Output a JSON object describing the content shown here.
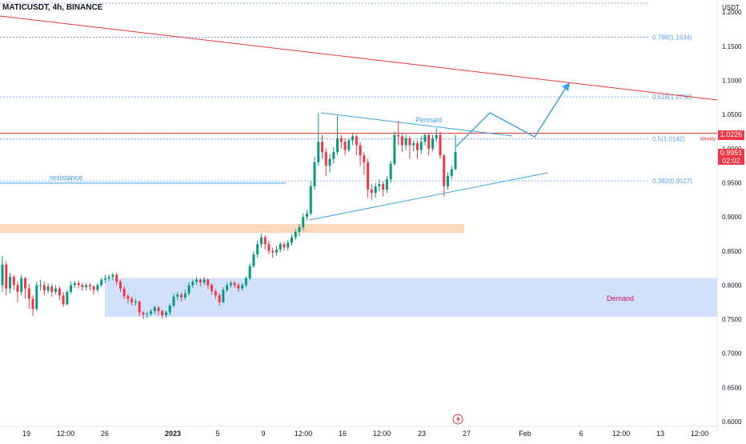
{
  "header": {
    "symbol_line": "MATICUSDT, 4h, BINANCE"
  },
  "colors": {
    "candle_up": "#089981",
    "candle_down": "#f23645",
    "fib": "#5b9cf6",
    "trend": "#e53935",
    "pennant": "#3ca4e6",
    "demand_fill": "#c9dbfa",
    "supply_fill": "#fbd6b8",
    "axis_text": "#131722"
  },
  "chart_data": {
    "type": "candlestick",
    "symbol": "MATICUSDT",
    "interval": "4h",
    "exchange": "BINANCE",
    "y_axis": {
      "unit": "USDT",
      "range": [
        0.6,
        1.2
      ],
      "ticks": [
        "1.2000",
        "1.1500",
        "1.1000",
        "1.0500",
        "1.0000",
        "0.9500",
        "0.9000",
        "0.8500",
        "0.8000",
        "0.7500",
        "0.7000",
        "0.6500",
        "0.6000"
      ]
    },
    "x_axis": {
      "ticks": [
        "19",
        "12:00",
        "26",
        "2023",
        "5",
        "9",
        "12:00",
        "16",
        "12:00",
        "23",
        "27",
        "Feb",
        "6",
        "12:00",
        "13",
        "12:00"
      ]
    },
    "last_price": {
      "label": "0.9951",
      "countdown": "02:02"
    },
    "weekly_level": {
      "label": "1.0226",
      "tag": "Weekly",
      "value": 1.0226
    },
    "fib_levels": [
      {
        "label": "0.786(1.1634)",
        "value": 1.1634
      },
      {
        "label": "0.618(1.0758)",
        "value": 1.0758
      },
      {
        "label": "0.5(1.0142)",
        "value": 1.0142
      },
      {
        "label": "0.382(0.9527)",
        "value": 0.9527
      }
    ],
    "zones": [
      {
        "label": "Demand",
        "low": 0.7535,
        "high": 0.8105
      },
      {
        "label": "",
        "low": 0.8765,
        "high": 0.8895
      }
    ],
    "annotations": {
      "resistance": {
        "label": "resistance",
        "value": 0.9495
      },
      "pennant": {
        "label": "Pennant"
      }
    },
    "candles": [
      [
        0.8,
        0.83,
        0.843,
        0.79
      ],
      [
        0.83,
        0.795,
        0.835,
        0.785
      ],
      [
        0.795,
        0.812,
        0.818,
        0.788
      ],
      [
        0.812,
        0.8,
        0.815,
        0.793
      ],
      [
        0.8,
        0.79,
        0.805,
        0.775
      ],
      [
        0.79,
        0.81,
        0.815,
        0.785
      ],
      [
        0.81,
        0.795,
        0.812,
        0.78
      ],
      [
        0.795,
        0.78,
        0.802,
        0.765
      ],
      [
        0.78,
        0.765,
        0.785,
        0.755
      ],
      [
        0.765,
        0.8,
        0.805,
        0.762
      ],
      [
        0.8,
        0.8,
        0.808,
        0.792
      ],
      [
        0.8,
        0.792,
        0.805,
        0.785
      ],
      [
        0.792,
        0.798,
        0.803,
        0.788
      ],
      [
        0.798,
        0.79,
        0.802,
        0.783
      ],
      [
        0.79,
        0.795,
        0.8,
        0.786
      ],
      [
        0.795,
        0.785,
        0.798,
        0.778
      ],
      [
        0.785,
        0.772,
        0.79,
        0.768
      ],
      [
        0.772,
        0.79,
        0.793,
        0.77
      ],
      [
        0.79,
        0.8,
        0.805,
        0.787
      ],
      [
        0.8,
        0.803,
        0.806,
        0.796
      ],
      [
        0.803,
        0.8,
        0.807,
        0.795
      ],
      [
        0.8,
        0.797,
        0.803,
        0.792
      ],
      [
        0.797,
        0.8,
        0.803,
        0.792
      ],
      [
        0.8,
        0.798,
        0.803,
        0.792
      ],
      [
        0.798,
        0.793,
        0.8,
        0.786
      ],
      [
        0.793,
        0.8,
        0.803,
        0.79
      ],
      [
        0.8,
        0.808,
        0.811,
        0.797
      ],
      [
        0.808,
        0.81,
        0.815,
        0.803
      ],
      [
        0.81,
        0.812,
        0.815,
        0.806
      ],
      [
        0.812,
        0.815,
        0.818,
        0.807
      ],
      [
        0.815,
        0.805,
        0.818,
        0.8
      ],
      [
        0.805,
        0.795,
        0.808,
        0.79
      ],
      [
        0.795,
        0.784,
        0.798,
        0.779
      ],
      [
        0.784,
        0.78,
        0.787,
        0.773
      ],
      [
        0.78,
        0.775,
        0.783,
        0.77
      ],
      [
        0.775,
        0.776,
        0.78,
        0.77
      ],
      [
        0.776,
        0.76,
        0.778,
        0.755
      ],
      [
        0.76,
        0.757,
        0.762,
        0.75
      ],
      [
        0.757,
        0.758,
        0.761,
        0.752
      ],
      [
        0.758,
        0.762,
        0.765,
        0.755
      ],
      [
        0.762,
        0.767,
        0.77,
        0.757
      ],
      [
        0.767,
        0.762,
        0.769,
        0.756
      ],
      [
        0.762,
        0.756,
        0.764,
        0.751
      ],
      [
        0.756,
        0.76,
        0.763,
        0.752
      ],
      [
        0.76,
        0.77,
        0.773,
        0.756
      ],
      [
        0.77,
        0.783,
        0.787,
        0.767
      ],
      [
        0.783,
        0.786,
        0.79,
        0.778
      ],
      [
        0.786,
        0.782,
        0.789,
        0.776
      ],
      [
        0.782,
        0.788,
        0.793,
        0.778
      ],
      [
        0.788,
        0.8,
        0.804,
        0.785
      ],
      [
        0.8,
        0.805,
        0.808,
        0.796
      ],
      [
        0.805,
        0.808,
        0.812,
        0.8
      ],
      [
        0.808,
        0.804,
        0.81,
        0.798
      ],
      [
        0.804,
        0.808,
        0.812,
        0.8
      ],
      [
        0.808,
        0.8,
        0.81,
        0.794
      ],
      [
        0.8,
        0.791,
        0.803,
        0.786
      ],
      [
        0.791,
        0.785,
        0.794,
        0.78
      ],
      [
        0.785,
        0.775,
        0.788,
        0.77
      ],
      [
        0.775,
        0.793,
        0.797,
        0.773
      ],
      [
        0.793,
        0.8,
        0.804,
        0.79
      ],
      [
        0.8,
        0.803,
        0.806,
        0.796
      ],
      [
        0.803,
        0.8,
        0.806,
        0.796
      ],
      [
        0.8,
        0.795,
        0.803,
        0.79
      ],
      [
        0.795,
        0.8,
        0.803,
        0.792
      ],
      [
        0.8,
        0.81,
        0.813,
        0.797
      ],
      [
        0.81,
        0.828,
        0.832,
        0.807
      ],
      [
        0.828,
        0.845,
        0.85,
        0.825
      ],
      [
        0.845,
        0.86,
        0.865,
        0.84
      ],
      [
        0.86,
        0.87,
        0.875,
        0.855
      ],
      [
        0.87,
        0.86,
        0.873,
        0.852
      ],
      [
        0.86,
        0.85,
        0.865,
        0.845
      ],
      [
        0.85,
        0.848,
        0.855,
        0.84
      ],
      [
        0.848,
        0.852,
        0.857,
        0.843
      ],
      [
        0.852,
        0.86,
        0.863,
        0.848
      ],
      [
        0.86,
        0.855,
        0.863,
        0.85
      ],
      [
        0.855,
        0.862,
        0.866,
        0.851
      ],
      [
        0.862,
        0.87,
        0.875,
        0.858
      ],
      [
        0.87,
        0.878,
        0.882,
        0.866
      ],
      [
        0.878,
        0.885,
        0.89,
        0.872
      ],
      [
        0.885,
        0.9,
        0.905,
        0.88
      ],
      [
        0.9,
        0.905,
        0.91,
        0.895
      ],
      [
        0.905,
        0.945,
        0.952,
        0.902
      ],
      [
        0.945,
        0.98,
        0.988,
        0.94
      ],
      [
        0.98,
        1.01,
        1.052,
        0.975
      ],
      [
        1.01,
        0.995,
        1.02,
        0.985
      ],
      [
        0.995,
        0.975,
        1.0,
        0.96
      ],
      [
        0.975,
        0.985,
        0.992,
        0.965
      ],
      [
        0.985,
        0.995,
        1.002,
        0.978
      ],
      [
        0.995,
        1.015,
        1.048,
        0.99
      ],
      [
        1.015,
        1.01,
        1.02,
        1.0
      ],
      [
        1.01,
        0.998,
        1.015,
        0.99
      ],
      [
        0.998,
        1.012,
        1.015,
        0.995
      ],
      [
        1.012,
        1.018,
        1.022,
        1.005
      ],
      [
        1.018,
        1.005,
        1.02,
        0.99
      ],
      [
        1.005,
        0.99,
        1.01,
        0.975
      ],
      [
        0.99,
        0.98,
        0.995,
        0.962
      ],
      [
        0.98,
        0.94,
        0.985,
        0.928
      ],
      [
        0.94,
        0.935,
        0.948,
        0.925
      ],
      [
        0.935,
        0.945,
        0.95,
        0.928
      ],
      [
        0.945,
        0.948,
        0.955,
        0.938
      ],
      [
        0.948,
        0.94,
        0.952,
        0.93
      ],
      [
        0.94,
        0.955,
        0.96,
        0.935
      ],
      [
        0.955,
        0.978,
        0.982,
        0.95
      ],
      [
        0.978,
        1.02,
        1.025,
        0.975
      ],
      [
        1.02,
        1.018,
        1.04,
        1.005
      ],
      [
        1.018,
        1.005,
        1.022,
        0.995
      ],
      [
        1.005,
        1.015,
        1.02,
        0.998
      ],
      [
        1.015,
        1.005,
        1.018,
        0.985
      ],
      [
        1.005,
        1.008,
        1.012,
        0.996
      ],
      [
        1.008,
        0.998,
        1.012,
        0.985
      ],
      [
        0.998,
        1.01,
        1.018,
        0.992
      ],
      [
        1.01,
        1.02,
        1.023,
        1.005
      ],
      [
        1.02,
        1.0,
        1.022,
        0.99
      ],
      [
        1.0,
        1.015,
        1.02,
        0.996
      ],
      [
        1.015,
        1.02,
        1.03,
        1.01
      ],
      [
        1.02,
        0.99,
        1.025,
        0.985
      ],
      [
        0.99,
        0.945,
        0.992,
        0.93
      ],
      [
        0.945,
        0.96,
        0.965,
        0.94
      ],
      [
        0.96,
        0.97,
        0.975,
        0.955
      ],
      [
        0.97,
        0.995,
        1.02,
        0.968
      ]
    ]
  }
}
